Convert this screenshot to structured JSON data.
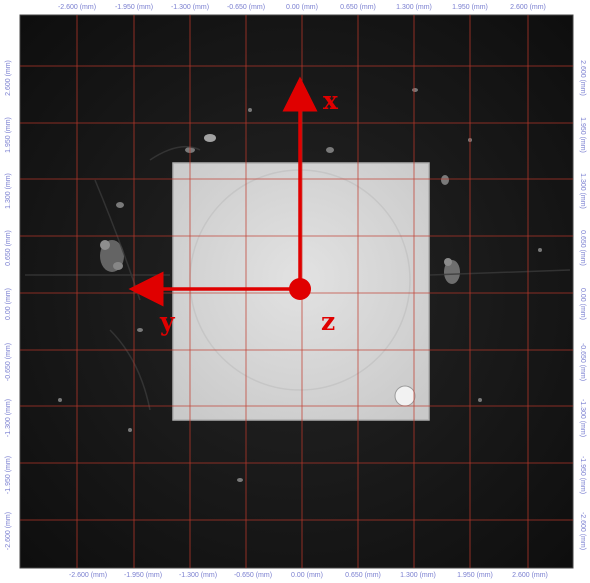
{
  "viewer": {
    "x_ticks": [
      "-2.600 (mm)",
      "-1.950 (mm)",
      "-1.300 (mm)",
      "-0.650 (mm)",
      "0.00 (mm)",
      "0.650 (mm)",
      "1.300 (mm)",
      "1.950 (mm)",
      "2.600 (mm)"
    ],
    "y_ticks": [
      "2.600 (mm)",
      "1.950 (mm)",
      "1.300 (mm)",
      "0.650 (mm)",
      "0.00 (mm)",
      "-0.650 (mm)",
      "-1.300 (mm)",
      "-1.950 (mm)",
      "-2.600 (mm)"
    ],
    "grid_color": "#c0392b",
    "label_color": "#7a7fd0",
    "background_color": "#151515",
    "die_color": "#d8d8d8"
  },
  "overlay": {
    "x_label": "x",
    "y_label": "y",
    "z_label": "z",
    "color": "#e00000"
  }
}
